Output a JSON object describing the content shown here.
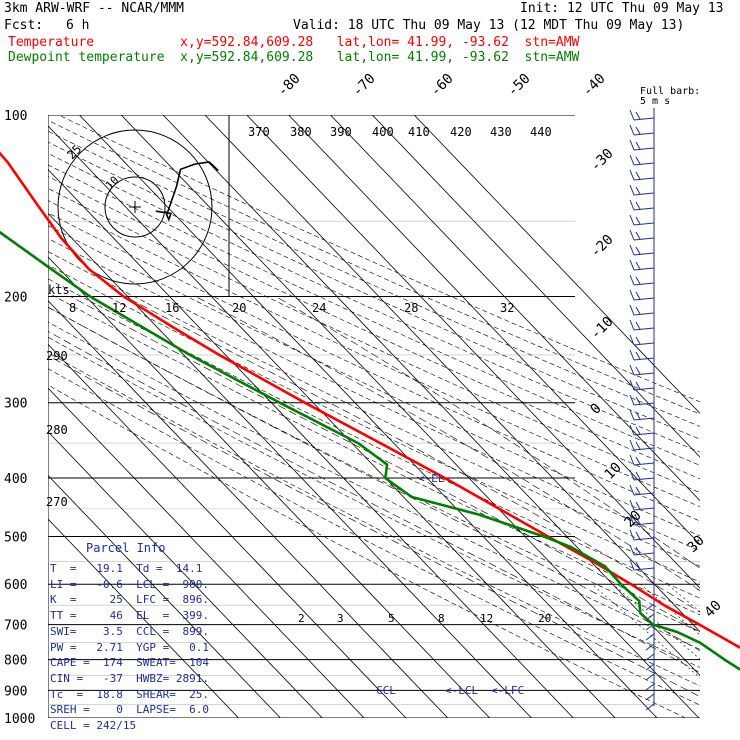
{
  "header": {
    "model": "3km ARW-WRF -- NCAR/MMM",
    "init": "Init: 12 UTC Thu 09 May 13",
    "fcst_label": "Fcst:",
    "fcst_value": "6 h",
    "valid": "Valid: 18 UTC Thu 09 May 13 (12 MDT Thu 09 May 13)",
    "temperature_line": "Temperature           x,y=592.84,609.28   lat,lon= 41.99, -93.62  stn=AMW",
    "dewpoint_line": "Dewpoint temperature  x,y=592.84,609.28   lat,lon= 41.99, -93.62  stn=AMW"
  },
  "colors": {
    "temperature": "#ff0000",
    "dewpoint": "#008000",
    "text_blue": "#1f2ea0",
    "grid": "#000000"
  },
  "chart_data": {
    "type": "line",
    "subtype": "skew-T log-P sounding",
    "y_axis_pressure_ticks": [
      "100",
      "200",
      "300",
      "400",
      "500",
      "600",
      "700",
      "800",
      "900",
      "1000"
    ],
    "skewed_isotherm_labels": [
      "-80",
      "-70",
      "-60",
      "-50",
      "-40",
      "-30",
      "-20",
      "-10",
      "0",
      "10",
      "20",
      "30",
      "40"
    ],
    "theta_labels": [
      "370",
      "380",
      "390",
      "400",
      "410",
      "420",
      "430",
      "440"
    ],
    "theta_low_labels": [
      "290",
      "280",
      "270"
    ],
    "mixing_ratio_labels": [
      "2",
      "3",
      "5",
      "8",
      "12",
      "20"
    ],
    "wind_speed_labels": [
      "8",
      "12",
      "16",
      "20",
      "24",
      "28",
      "32"
    ],
    "wind_unit": "kts",
    "hodograph_ring_labels": [
      "25",
      "10"
    ],
    "wind_barb_note_1": "Full barb:",
    "wind_barb_note_2": "5 m s",
    "level_markers": [
      "<-EL",
      "CCL",
      "<-LCL",
      "<-LFC"
    ],
    "series": [
      {
        "name": "Temperature",
        "color": "#ff0000",
        "points": [
          [
            1000,
            20.5
          ],
          [
            950,
            17.2
          ],
          [
            925,
            15.3
          ],
          [
            900,
            14.0
          ],
          [
            850,
            11.2
          ],
          [
            800,
            8.2
          ],
          [
            750,
            5.0
          ],
          [
            700,
            1.5
          ],
          [
            650,
            -2.5
          ],
          [
            600,
            -5.6
          ],
          [
            550,
            -9.5
          ],
          [
            500,
            -14.5
          ],
          [
            450,
            -19.8
          ],
          [
            400,
            -25.8
          ],
          [
            350,
            -33.2
          ],
          [
            300,
            -42.0
          ],
          [
            250,
            -51.5
          ],
          [
            225,
            -56.2
          ],
          [
            200,
            -61.0
          ],
          [
            180,
            -63.0
          ],
          [
            160,
            -62.5
          ],
          [
            140,
            -60.5
          ],
          [
            120,
            -58.0
          ],
          [
            100,
            -57.0
          ]
        ]
      },
      {
        "name": "Dewpoint temperature",
        "color": "#008000",
        "points": [
          [
            970,
            12.0
          ],
          [
            950,
            13.2
          ],
          [
            925,
            12.0
          ],
          [
            900,
            6.2
          ],
          [
            850,
            1.8
          ],
          [
            800,
            -0.5
          ],
          [
            750,
            -2.5
          ],
          [
            720,
            -5.5
          ],
          [
            700,
            -9.6
          ],
          [
            670,
            -10.0
          ],
          [
            640,
            -7.5
          ],
          [
            600,
            -8.0
          ],
          [
            560,
            -7.7
          ],
          [
            520,
            -11.5
          ],
          [
            500,
            -15.5
          ],
          [
            460,
            -26.0
          ],
          [
            430,
            -38.0
          ],
          [
            400,
            -40.0
          ],
          [
            380,
            -36.5
          ],
          [
            350,
            -38.5
          ],
          [
            300,
            -48.0
          ],
          [
            250,
            -58.5
          ],
          [
            200,
            -69.0
          ],
          [
            180,
            -72.0
          ],
          [
            150,
            -77.0
          ],
          [
            130,
            -81.0
          ],
          [
            110,
            -86.0
          ],
          [
            100,
            -90.0
          ]
        ]
      }
    ],
    "hodograph": [
      [
        8.0,
        -1.6
      ],
      [
        13.8,
        -2.5
      ],
      [
        13.0,
        -4.8
      ],
      [
        12.2,
        -3.0
      ],
      [
        16.0,
        8.0
      ],
      [
        17.5,
        14.5
      ],
      [
        23.0,
        16.5
      ],
      [
        28.5,
        17.3
      ],
      [
        30.0,
        16.0
      ],
      [
        32.0,
        14.0
      ]
    ]
  },
  "parcel_info": {
    "title": "Parcel Info",
    "rows": [
      "T  =   19.1  Td =  14.1",
      "LI =   -0.6  LCL =  900.",
      "K  =     25  LFC =  896.",
      "TT =     46  EL  =  399.",
      "SWI=    3.5  CCL =  899.",
      "PW =   2.71  YGP =   0.1",
      "CAPE =  174  SWEAT=  104",
      "CIN =   -37  HWBZ= 2891.",
      "Tc  =  18.8  SHEAR=  25.",
      "SREH =    0  LAPSE=  6.0",
      "CELL = 242/15"
    ]
  }
}
